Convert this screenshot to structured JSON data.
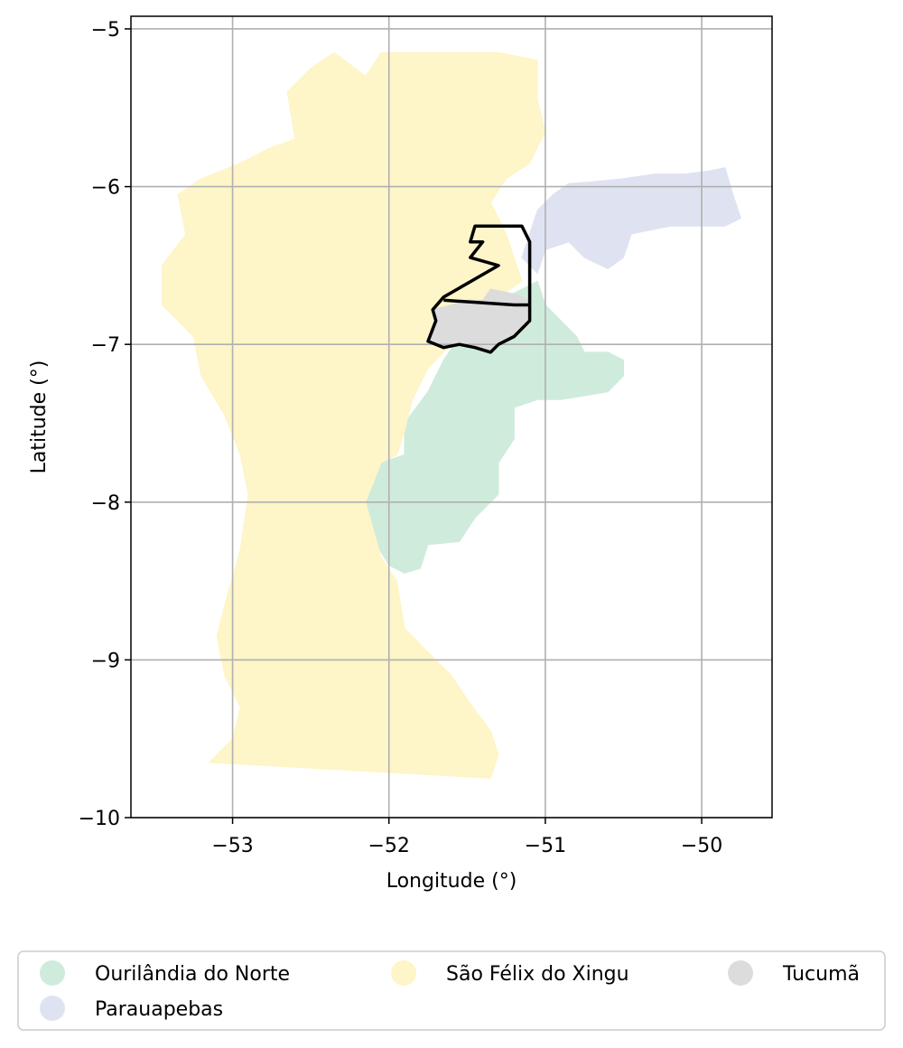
{
  "chart_data": {
    "type": "map",
    "xlabel": "Longitude (°)",
    "ylabel": "Latitude (°)",
    "xlim": [
      -53.65,
      -49.55
    ],
    "ylim": [
      -10.0,
      -4.92
    ],
    "grid": true,
    "x_ticks": [
      {
        "value": -53,
        "label": "−53"
      },
      {
        "value": -52,
        "label": "−52"
      },
      {
        "value": -51,
        "label": "−51"
      },
      {
        "value": -50,
        "label": "−50"
      }
    ],
    "y_ticks": [
      {
        "value": -5,
        "label": "−5"
      },
      {
        "value": -6,
        "label": "−6"
      },
      {
        "value": -7,
        "label": "−7"
      },
      {
        "value": -8,
        "label": "−8"
      },
      {
        "value": -9,
        "label": "−9"
      },
      {
        "value": -10,
        "label": "−10"
      }
    ],
    "legend_position": "bottom",
    "regions": [
      {
        "name": "Ourilândia do Norte",
        "color": "#cfebdc",
        "coords": [
          [
            -51.05,
            -6.6
          ],
          [
            -51.0,
            -6.75
          ],
          [
            -50.9,
            -6.85
          ],
          [
            -50.8,
            -6.95
          ],
          [
            -50.75,
            -7.05
          ],
          [
            -50.6,
            -7.05
          ],
          [
            -50.5,
            -7.1
          ],
          [
            -50.5,
            -7.2
          ],
          [
            -50.6,
            -7.3
          ],
          [
            -50.9,
            -7.35
          ],
          [
            -51.05,
            -7.35
          ],
          [
            -51.2,
            -7.4
          ],
          [
            -51.2,
            -7.6
          ],
          [
            -51.3,
            -7.75
          ],
          [
            -51.3,
            -7.95
          ],
          [
            -51.45,
            -8.1
          ],
          [
            -51.55,
            -8.25
          ],
          [
            -51.75,
            -8.27
          ],
          [
            -51.8,
            -8.42
          ],
          [
            -51.9,
            -8.45
          ],
          [
            -52.0,
            -8.4
          ],
          [
            -52.15,
            -8.15
          ],
          [
            -52.15,
            -7.95
          ],
          [
            -52.05,
            -7.75
          ],
          [
            -51.9,
            -7.7
          ],
          [
            -51.9,
            -7.5
          ],
          [
            -51.75,
            -7.3
          ],
          [
            -51.65,
            -7.1
          ],
          [
            -51.55,
            -6.95
          ],
          [
            -51.25,
            -6.7
          ]
        ]
      },
      {
        "name": "Parauapebas",
        "color": "#dfe3f1",
        "coords": [
          [
            -51.05,
            -6.15
          ],
          [
            -50.95,
            -6.05
          ],
          [
            -50.85,
            -5.98
          ],
          [
            -50.7,
            -5.97
          ],
          [
            -50.5,
            -5.95
          ],
          [
            -50.3,
            -5.92
          ],
          [
            -50.1,
            -5.92
          ],
          [
            -49.95,
            -5.9
          ],
          [
            -49.85,
            -5.88
          ],
          [
            -49.8,
            -6.05
          ],
          [
            -49.75,
            -6.2
          ],
          [
            -49.85,
            -6.25
          ],
          [
            -50.2,
            -6.25
          ],
          [
            -50.45,
            -6.3
          ],
          [
            -50.5,
            -6.45
          ],
          [
            -50.6,
            -6.52
          ],
          [
            -50.75,
            -6.45
          ],
          [
            -50.85,
            -6.35
          ],
          [
            -51.0,
            -6.4
          ],
          [
            -51.05,
            -6.55
          ],
          [
            -51.15,
            -6.45
          ],
          [
            -51.1,
            -6.3
          ]
        ]
      },
      {
        "name": "São Félix do Xingu",
        "color": "#fef5c8",
        "coords": [
          [
            -52.05,
            -5.15
          ],
          [
            -51.3,
            -5.15
          ],
          [
            -51.05,
            -5.2
          ],
          [
            -51.05,
            -5.45
          ],
          [
            -51.0,
            -5.65
          ],
          [
            -51.1,
            -5.85
          ],
          [
            -51.25,
            -5.95
          ],
          [
            -51.35,
            -6.1
          ],
          [
            -51.25,
            -6.3
          ],
          [
            -51.15,
            -6.6
          ],
          [
            -51.3,
            -6.7
          ],
          [
            -51.55,
            -6.95
          ],
          [
            -51.75,
            -7.15
          ],
          [
            -51.85,
            -7.35
          ],
          [
            -51.9,
            -7.55
          ],
          [
            -51.95,
            -7.7
          ],
          [
            -52.05,
            -7.75
          ],
          [
            -52.15,
            -8.0
          ],
          [
            -52.05,
            -8.35
          ],
          [
            -51.95,
            -8.5
          ],
          [
            -51.9,
            -8.8
          ],
          [
            -51.75,
            -8.95
          ],
          [
            -51.6,
            -9.1
          ],
          [
            -51.5,
            -9.25
          ],
          [
            -51.35,
            -9.45
          ],
          [
            -51.3,
            -9.6
          ],
          [
            -51.35,
            -9.75
          ],
          [
            -53.15,
            -9.65
          ],
          [
            -53.0,
            -9.5
          ],
          [
            -52.95,
            -9.3
          ],
          [
            -53.05,
            -9.1
          ],
          [
            -53.1,
            -8.85
          ],
          [
            -53.05,
            -8.65
          ],
          [
            -52.95,
            -8.3
          ],
          [
            -52.9,
            -7.95
          ],
          [
            -52.95,
            -7.7
          ],
          [
            -53.05,
            -7.45
          ],
          [
            -53.2,
            -7.2
          ],
          [
            -53.25,
            -6.95
          ],
          [
            -53.45,
            -6.75
          ],
          [
            -53.45,
            -6.5
          ],
          [
            -53.3,
            -6.3
          ],
          [
            -53.35,
            -6.05
          ],
          [
            -53.2,
            -5.95
          ],
          [
            -52.95,
            -5.85
          ],
          [
            -52.75,
            -5.75
          ],
          [
            -52.6,
            -5.7
          ],
          [
            -52.65,
            -5.4
          ],
          [
            -52.5,
            -5.25
          ],
          [
            -52.35,
            -5.15
          ],
          [
            -52.15,
            -5.3
          ]
        ]
      },
      {
        "name": "Tucumã",
        "color": "#dcdcdc",
        "coords": [
          [
            -51.1,
            -6.72
          ],
          [
            -51.1,
            -6.85
          ],
          [
            -51.2,
            -6.95
          ],
          [
            -51.3,
            -7.0
          ],
          [
            -51.35,
            -7.05
          ],
          [
            -51.45,
            -7.02
          ],
          [
            -51.55,
            -7.0
          ],
          [
            -51.65,
            -7.02
          ],
          [
            -51.75,
            -6.98
          ],
          [
            -51.7,
            -6.85
          ],
          [
            -51.72,
            -6.78
          ],
          [
            -51.6,
            -6.75
          ],
          [
            -51.5,
            -6.72
          ],
          [
            -51.4,
            -6.72
          ],
          [
            -51.35,
            -6.65
          ],
          [
            -51.2,
            -6.68
          ]
        ]
      }
    ],
    "outlines": [
      {
        "name": "Tucumã",
        "coords": [
          [
            -51.45,
            -6.25
          ],
          [
            -51.15,
            -6.25
          ],
          [
            -51.1,
            -6.35
          ],
          [
            -51.1,
            -6.85
          ],
          [
            -51.2,
            -6.95
          ],
          [
            -51.3,
            -7.0
          ],
          [
            -51.35,
            -7.05
          ],
          [
            -51.45,
            -7.02
          ],
          [
            -51.55,
            -7.0
          ],
          [
            -51.65,
            -7.02
          ],
          [
            -51.75,
            -6.98
          ],
          [
            -51.7,
            -6.85
          ],
          [
            -51.72,
            -6.78
          ],
          [
            -51.65,
            -6.7
          ],
          [
            -51.3,
            -6.5
          ],
          [
            -51.48,
            -6.45
          ],
          [
            -51.4,
            -6.35
          ],
          [
            -51.48,
            -6.35
          ]
        ]
      },
      {
        "name": "divider",
        "coords": [
          [
            -51.65,
            -6.72
          ],
          [
            -51.5,
            -6.73
          ],
          [
            -51.35,
            -6.74
          ],
          [
            -51.2,
            -6.75
          ],
          [
            -51.1,
            -6.75
          ]
        ]
      }
    ],
    "legend": [
      {
        "label": "Ourilândia do Norte",
        "color": "#cfebdc"
      },
      {
        "label": "São Félix do Xingu",
        "color": "#fef5c8"
      },
      {
        "label": "Tucumã",
        "color": "#dcdcdc"
      },
      {
        "label": "Parauapebas",
        "color": "#dfe3f1"
      }
    ]
  }
}
